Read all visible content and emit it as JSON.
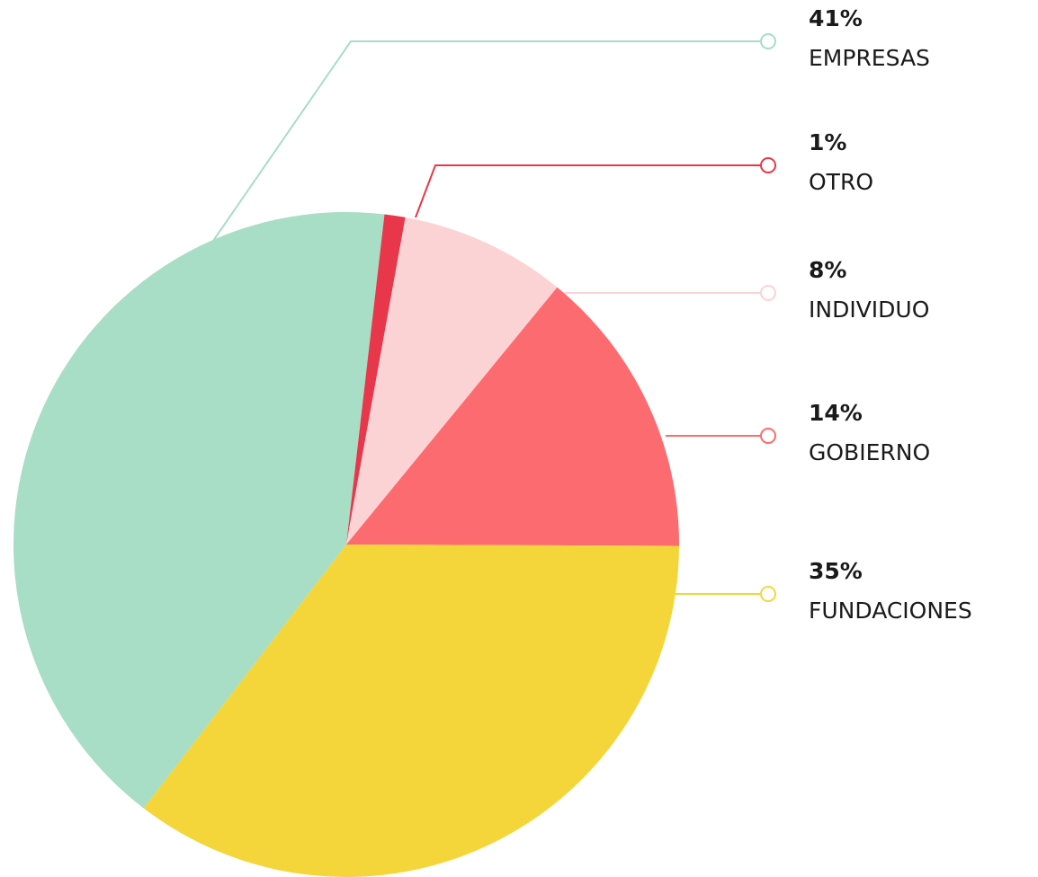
{
  "chart_data": {
    "type": "pie",
    "categories": [
      "EMPRESAS",
      "OTRO",
      "INDIVIDUO",
      "GOBIERNO",
      "FUNDACIONES"
    ],
    "values": [
      41,
      1,
      8,
      14,
      35
    ],
    "value_labels": [
      "41%",
      "1%",
      "8%",
      "14%",
      "35%"
    ],
    "colors": [
      "#a8ddc6",
      "#e8374a",
      "#fcd3d5",
      "#fc6b6f",
      "#f4d63b"
    ]
  }
}
